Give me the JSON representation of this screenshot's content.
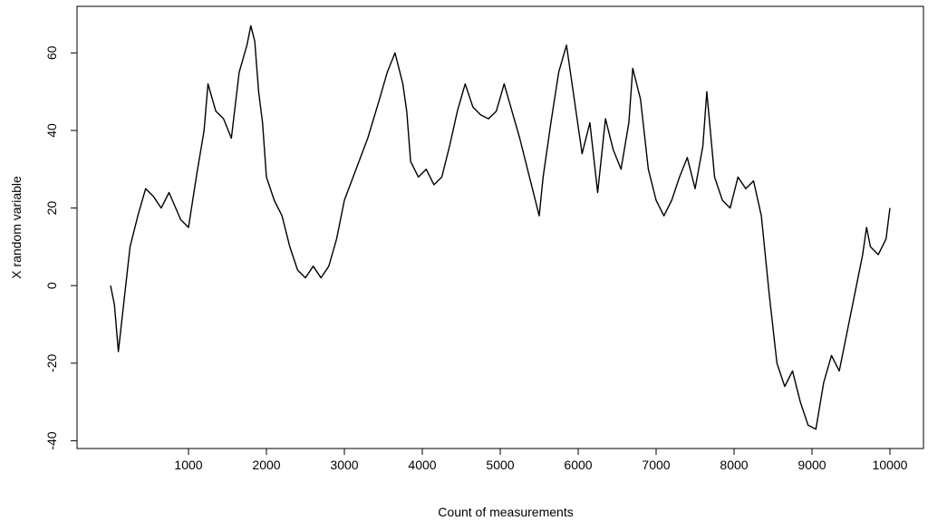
{
  "chart_data": {
    "type": "line",
    "title": "",
    "xlabel": "Count  of  measurements",
    "ylabel": "X  random  variable",
    "xlim": [
      0,
      10000
    ],
    "ylim": [
      -42,
      72
    ],
    "grid": false,
    "line_color": "#000000",
    "x_ticks": [
      1000,
      2000,
      3000,
      4000,
      5000,
      6000,
      7000,
      8000,
      9000,
      10000
    ],
    "x_tick_labels": [
      "1000",
      "2000",
      "3000",
      "4000",
      "5000",
      "6000",
      "7000",
      "8000",
      "9000",
      "10000"
    ],
    "y_ticks": [
      -40,
      -20,
      0,
      20,
      40,
      60
    ],
    "y_tick_labels": [
      "-40",
      "-20",
      "0",
      "20",
      "40",
      "60"
    ],
    "series": [
      {
        "x": [
          0,
          50,
          100,
          150,
          250,
          350,
          450,
          550,
          650,
          750,
          900,
          1000,
          1100,
          1200,
          1250,
          1350,
          1450,
          1550,
          1650,
          1750,
          1800,
          1850,
          1900,
          1950,
          2000,
          2100,
          2200,
          2300,
          2400,
          2500,
          2600,
          2700,
          2800,
          2900,
          3000,
          3150,
          3300,
          3450,
          3550,
          3650,
          3750,
          3800,
          3850,
          3950,
          4050,
          4150,
          4250,
          4350,
          4450,
          4550,
          4650,
          4750,
          4850,
          4950,
          5050,
          5150,
          5250,
          5350,
          5450,
          5500,
          5550,
          5650,
          5750,
          5850,
          5950,
          6050,
          6150,
          6250,
          6350,
          6450,
          6550,
          6650,
          6700,
          6800,
          6900,
          7000,
          7100,
          7200,
          7300,
          7400,
          7500,
          7600,
          7650,
          7750,
          7850,
          7950,
          8050,
          8150,
          8250,
          8350,
          8450,
          8550,
          8650,
          8750,
          8850,
          8950,
          9050,
          9150,
          9250,
          9350,
          9450,
          9550,
          9650,
          9700,
          9750,
          9850,
          9950,
          10000
        ],
        "y": [
          0,
          -5,
          -17,
          -8,
          10,
          18,
          25,
          23,
          20,
          24,
          17,
          15,
          28,
          40,
          52,
          45,
          43,
          38,
          55,
          62,
          67,
          63,
          50,
          42,
          28,
          22,
          18,
          10,
          4,
          2,
          5,
          2,
          5,
          12,
          22,
          30,
          38,
          48,
          55,
          60,
          52,
          45,
          32,
          28,
          30,
          26,
          28,
          36,
          45,
          52,
          46,
          44,
          43,
          45,
          52,
          45,
          38,
          30,
          22,
          18,
          28,
          42,
          55,
          62,
          48,
          34,
          42,
          24,
          43,
          35,
          30,
          42,
          56,
          48,
          30,
          22,
          18,
          22,
          28,
          33,
          25,
          36,
          50,
          28,
          22,
          20,
          28,
          25,
          27,
          18,
          -2,
          -20,
          -26,
          -22,
          -30,
          -36,
          -37,
          -25,
          -18,
          -22,
          -12,
          -2,
          8,
          15,
          10,
          8,
          12,
          20
        ]
      }
    ]
  }
}
